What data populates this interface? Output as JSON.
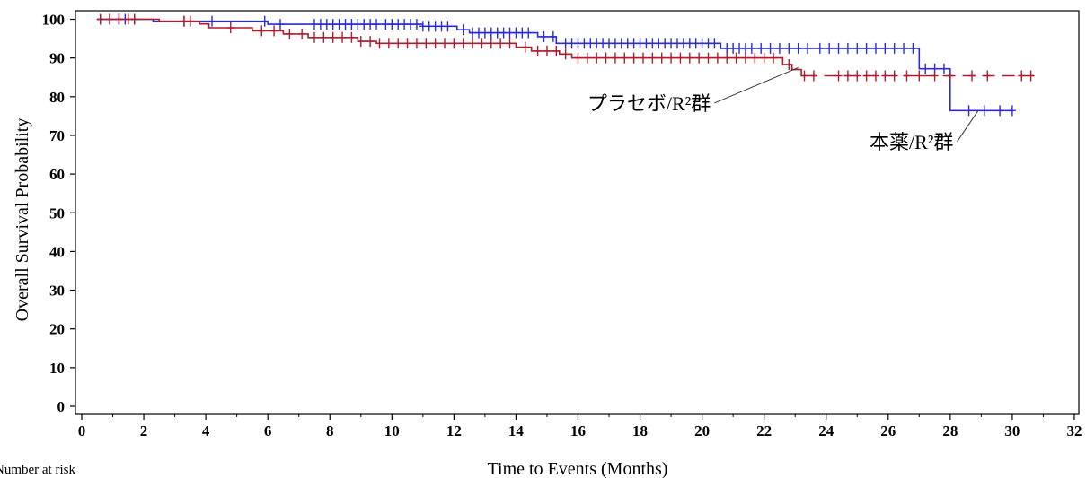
{
  "chart_data": {
    "type": "line",
    "title": "",
    "xlabel": "Time to Events (Months)",
    "ylabel": "Overall Survival Probability",
    "xlim": [
      0,
      32
    ],
    "ylim": [
      0,
      100
    ],
    "xticks": [
      0,
      2,
      4,
      6,
      8,
      10,
      12,
      14,
      16,
      18,
      20,
      22,
      24,
      26,
      28,
      30,
      32
    ],
    "yticks": [
      0,
      10,
      20,
      30,
      40,
      50,
      60,
      70,
      80,
      90,
      100
    ],
    "grid": false,
    "legend": "none",
    "series": [
      {
        "name": "本薬/R²群",
        "color": "#2b2bd6",
        "steps": [
          [
            0.5,
            100
          ],
          [
            2.3,
            99.5
          ],
          [
            6.0,
            98.7
          ],
          [
            11.0,
            98.2
          ],
          [
            12.1,
            97.3
          ],
          [
            12.5,
            96.5
          ],
          [
            14.7,
            95.5
          ],
          [
            15.3,
            93.8
          ],
          [
            20.6,
            92.5
          ],
          [
            27.0,
            87.2
          ],
          [
            28.0,
            76.4
          ],
          [
            30.0,
            76.4
          ]
        ],
        "censor": [
          0.6,
          0.9,
          1.2,
          1.4,
          1.7,
          3.3,
          4.2,
          5.9,
          6.4,
          7.5,
          7.7,
          7.9,
          8.1,
          8.3,
          8.5,
          8.7,
          8.9,
          9.1,
          9.3,
          9.5,
          9.8,
          10.0,
          10.2,
          10.4,
          10.6,
          10.8,
          11.0,
          11.2,
          11.4,
          11.6,
          11.8,
          12.3,
          12.6,
          12.8,
          13.0,
          13.2,
          13.4,
          13.6,
          13.8,
          14.0,
          14.2,
          14.4,
          14.9,
          15.2,
          15.6,
          15.8,
          16.0,
          16.2,
          16.4,
          16.6,
          16.8,
          17.0,
          17.2,
          17.4,
          17.6,
          17.8,
          18.0,
          18.2,
          18.4,
          18.6,
          18.8,
          19.0,
          19.2,
          19.4,
          19.6,
          19.8,
          20.0,
          20.2,
          20.4,
          20.8,
          21.0,
          21.2,
          21.4,
          21.6,
          21.9,
          22.2,
          22.5,
          22.8,
          23.1,
          23.4,
          23.8,
          24.1,
          24.4,
          24.7,
          25.0,
          25.3,
          25.6,
          25.9,
          26.2,
          26.5,
          26.8,
          27.2,
          27.5,
          27.8,
          28.6,
          29.1,
          29.6,
          30.0
        ]
      },
      {
        "name": "プラセボ/R²群",
        "color": "#b01c2e",
        "dashed_from": 23.3,
        "steps": [
          [
            0.5,
            100
          ],
          [
            2.5,
            99.5
          ],
          [
            3.8,
            98.8
          ],
          [
            4.1,
            97.8
          ],
          [
            5.5,
            97.0
          ],
          [
            6.5,
            96.2
          ],
          [
            7.3,
            95.3
          ],
          [
            8.9,
            94.3
          ],
          [
            9.5,
            93.8
          ],
          [
            14.0,
            92.8
          ],
          [
            14.5,
            91.8
          ],
          [
            15.4,
            91.0
          ],
          [
            15.8,
            90.0
          ],
          [
            22.6,
            88.3
          ],
          [
            22.9,
            87.0
          ],
          [
            23.2,
            85.4
          ],
          [
            30.7,
            85.4
          ]
        ],
        "censor": [
          0.6,
          0.9,
          1.2,
          1.5,
          1.7,
          3.3,
          3.5,
          4.8,
          5.8,
          6.2,
          6.7,
          7.1,
          7.5,
          7.8,
          8.1,
          8.4,
          8.7,
          9.0,
          9.3,
          9.6,
          9.9,
          10.2,
          10.5,
          10.8,
          11.1,
          11.4,
          11.7,
          12.0,
          12.3,
          12.6,
          12.9,
          13.2,
          13.5,
          13.8,
          14.3,
          14.7,
          15.0,
          15.3,
          15.6,
          16.0,
          16.3,
          16.6,
          16.9,
          17.2,
          17.5,
          17.8,
          18.1,
          18.4,
          18.7,
          19.0,
          19.3,
          19.6,
          19.9,
          20.2,
          20.5,
          20.8,
          21.1,
          21.4,
          21.7,
          22.0,
          22.3,
          22.8,
          23.3,
          23.6,
          24.4,
          24.7,
          25.0,
          25.3,
          25.6,
          25.9,
          26.2,
          26.6,
          27.0,
          27.5,
          28.0,
          28.7,
          29.2,
          30.3,
          30.6
        ]
      }
    ],
    "annotations": [
      {
        "text": "プラセボ/R²群",
        "series": 1,
        "target": [
          23.1,
          87.5
        ],
        "anchor": [
          16.3,
          76.5
        ]
      },
      {
        "text": "本薬/R²群",
        "series": 0,
        "target": [
          28.9,
          76.4
        ],
        "anchor": [
          25.4,
          66.5
        ]
      }
    ]
  },
  "footer_text": "Number at risk"
}
